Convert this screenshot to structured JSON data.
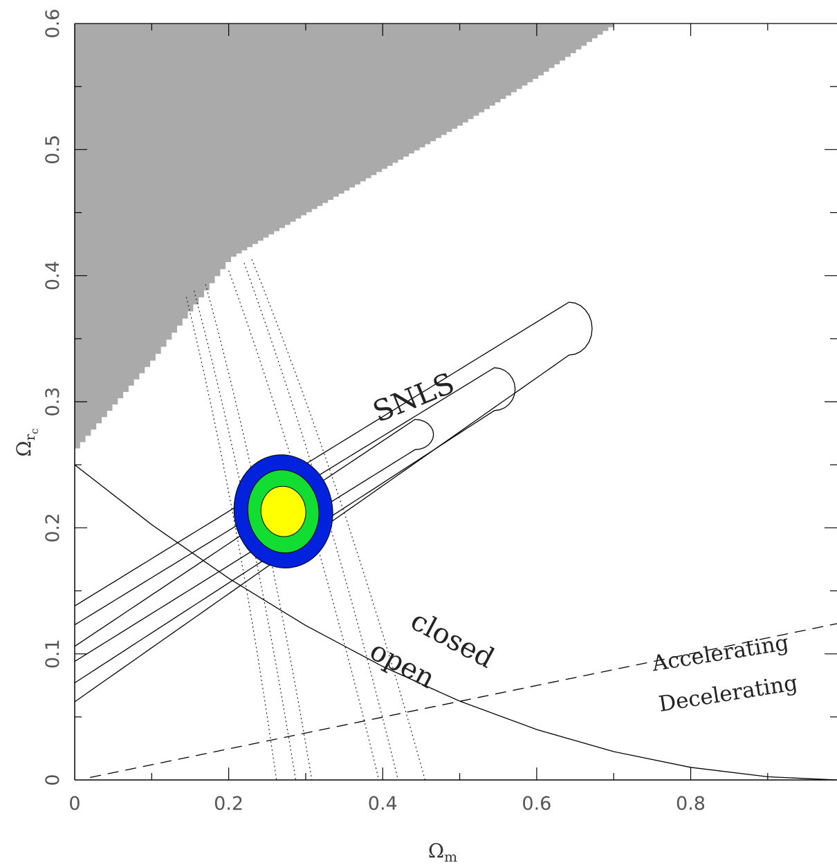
{
  "chart_data": {
    "type": "contour",
    "xlabel_base": "Ω",
    "xlabel_sub": "m",
    "ylabel_base": "Ω",
    "ylabel_sub": "r",
    "ylabel_subsub": "c",
    "xlim": [
      0,
      0.99
    ],
    "ylim": [
      0,
      0.6
    ],
    "xticks": [
      {
        "value": 0,
        "label": "0"
      },
      {
        "value": 0.2,
        "label": "0.2"
      },
      {
        "value": 0.4,
        "label": "0.4"
      },
      {
        "value": 0.6,
        "label": "0.6"
      },
      {
        "value": 0.8,
        "label": "0.8"
      }
    ],
    "yticks": [
      {
        "value": 0,
        "label": "0"
      },
      {
        "value": 0.1,
        "label": "0.1"
      },
      {
        "value": 0.2,
        "label": "0.2"
      },
      {
        "value": 0.3,
        "label": "0.3"
      },
      {
        "value": 0.4,
        "label": "0.4"
      },
      {
        "value": 0.5,
        "label": "0.5"
      },
      {
        "value": 0.6,
        "label": "0.6"
      }
    ],
    "grid": false,
    "excluded_region": {
      "color": "#aaaaaa",
      "boundary": [
        [
          0,
          0.263
        ],
        [
          0.1,
          0.334
        ],
        [
          0.2,
          0.414
        ],
        [
          0.3,
          0.45
        ],
        [
          0.4,
          0.485
        ],
        [
          0.5,
          0.52
        ],
        [
          0.6,
          0.558
        ],
        [
          0.7,
          0.6
        ]
      ]
    },
    "joint_contours": {
      "center": [
        0.271,
        0.213
      ],
      "fills": [
        {
          "level": "outer",
          "color": "#0022dd",
          "rx": 0.064,
          "ry": 0.045
        },
        {
          "level": "middle",
          "color": "#11dd33",
          "rx": 0.046,
          "ry": 0.033
        },
        {
          "level": "inner",
          "color": "#ffff00",
          "rx": 0.029,
          "ry": 0.02
        }
      ]
    },
    "snls_contours": {
      "label": "SNLS",
      "levels": [
        {
          "left_upper": 0.138,
          "left_lower": 0.062,
          "tip_x": 0.642,
          "tip_y": 0.358,
          "tip_half": 0.021
        },
        {
          "left_upper": 0.123,
          "left_lower": 0.077,
          "tip_x": 0.545,
          "tip_y": 0.31,
          "tip_half": 0.017
        },
        {
          "left_upper": 0.106,
          "left_lower": 0.094,
          "tip_x": 0.442,
          "tip_y": 0.274,
          "tip_half": 0.012
        }
      ]
    },
    "dotted_bands": [
      {
        "x_top": 0.145,
        "y_top": 0.383,
        "x_bottom": 0.262
      },
      {
        "x_top": 0.155,
        "y_top": 0.388,
        "x_bottom": 0.287
      },
      {
        "x_top": 0.17,
        "y_top": 0.393,
        "x_bottom": 0.308
      },
      {
        "x_top": 0.2,
        "y_top": 0.404,
        "x_bottom": 0.395
      },
      {
        "x_top": 0.22,
        "y_top": 0.41,
        "x_bottom": 0.42
      },
      {
        "x_top": 0.23,
        "y_top": 0.413,
        "x_bottom": 0.455
      }
    ],
    "flat_curve": {
      "x": [
        0,
        0.1,
        0.2,
        0.3,
        0.4,
        0.5,
        0.6,
        0.7,
        0.8,
        0.9,
        0.99
      ],
      "y": [
        0.25,
        0.2025,
        0.16,
        0.1225,
        0.09,
        0.0625,
        0.04,
        0.0225,
        0.01,
        0.0025,
        0.0
      ]
    },
    "acceleration_line": {
      "x": [
        0.02,
        0.99
      ],
      "y": [
        0.002,
        0.124
      ],
      "style": "dashed"
    },
    "annotations": [
      {
        "text": "SNLS",
        "x": 0.445,
        "y": 0.296,
        "angle": -22,
        "size": 42
      },
      {
        "text": "closed",
        "x": 0.485,
        "y": 0.105,
        "angle": 28,
        "size": 40
      },
      {
        "text": "open",
        "x": 0.42,
        "y": 0.085,
        "angle": 28,
        "size": 40
      },
      {
        "text": "Accelerating",
        "x": 0.84,
        "y": 0.095,
        "angle": -9,
        "size": 31
      },
      {
        "text": "Decelerating",
        "x": 0.85,
        "y": 0.063,
        "angle": -9,
        "size": 31
      }
    ]
  }
}
